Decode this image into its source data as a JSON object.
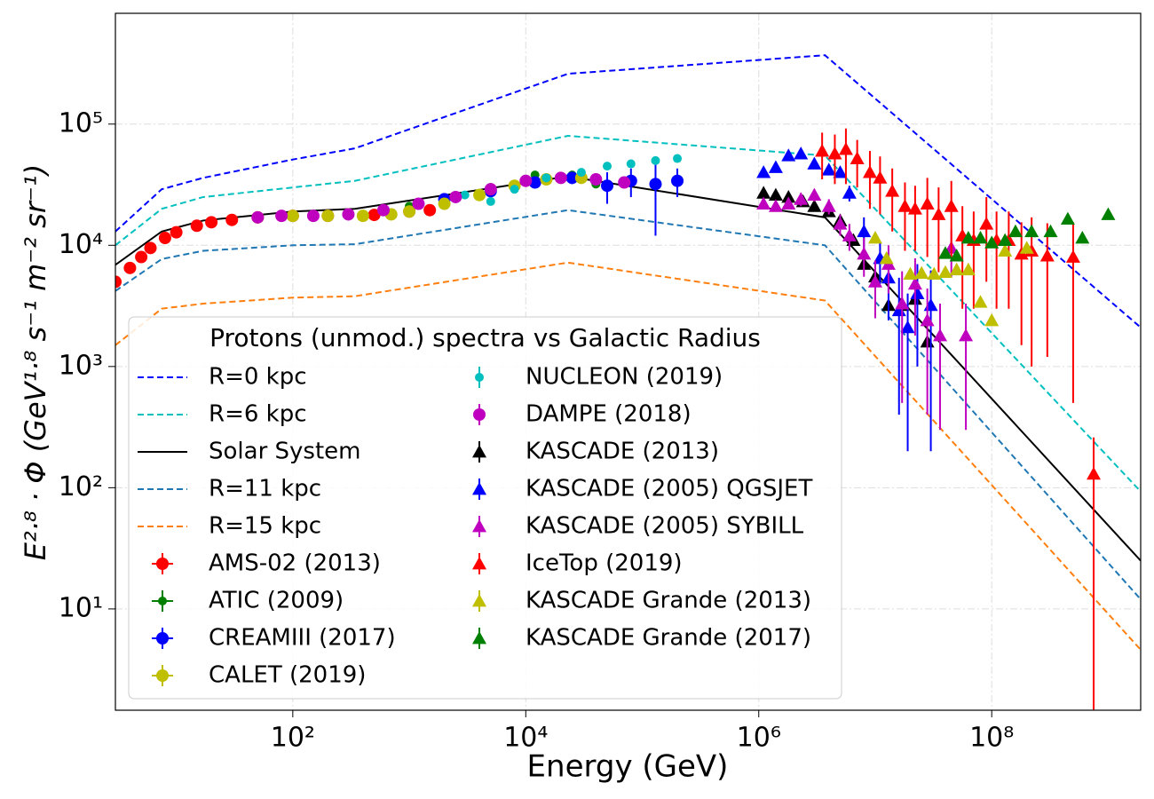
{
  "chart_data": {
    "type": "line",
    "xlabel": "Energy (GeV)",
    "ylabel": "E²·⁸ · Φ (GeV¹·⁸ s⁻¹ m⁻² sr⁻¹)",
    "legend_title": "Protons (unmod.) spectra vs Galactic Radius",
    "log_x": true,
    "log_y": true,
    "grid": true,
    "legend": "lower left",
    "xlim": [
      3,
      1900000000
    ],
    "ylim": [
      1.46,
      820000
    ],
    "xticks": [
      {
        "value": 100,
        "label": "10²"
      },
      {
        "value": 10000,
        "label": "10⁴"
      },
      {
        "value": 1000000,
        "label": "10⁶"
      },
      {
        "value": 100000000,
        "label": "10⁸"
      }
    ],
    "yticks": [
      {
        "value": 10,
        "label": "10¹"
      },
      {
        "value": 100,
        "label": "10²"
      },
      {
        "value": 1000,
        "label": "10³"
      },
      {
        "value": 10000,
        "label": "10⁴"
      },
      {
        "value": 100000,
        "label": "10⁵"
      }
    ],
    "series": [
      {
        "name": "R=0 kpc",
        "color": "#0000ff",
        "style": "dashed",
        "x": [
          3,
          7.5,
          17,
          100,
          340,
          23000,
          3700000,
          1900000000
        ],
        "values": [
          13000,
          29000,
          36000,
          51000,
          63000,
          260000,
          370000,
          2100
        ]
      },
      {
        "name": "R=6 kpc",
        "color": "#00bfbf",
        "style": "dashed",
        "x": [
          3,
          7.5,
          17,
          100,
          340,
          23000,
          3700000,
          1900000000
        ],
        "values": [
          10000,
          20000,
          25000,
          30000,
          34000,
          80000,
          55000,
          93
        ]
      },
      {
        "name": "Solar System",
        "color": "#000000",
        "style": "solid",
        "x": [
          3,
          7.5,
          17,
          100,
          340,
          23000,
          3700000,
          1900000000
        ],
        "values": [
          6900,
          13000,
          16000,
          19000,
          20000,
          37000,
          17000,
          25
        ]
      },
      {
        "name": "R=11 kpc",
        "color": "#1f77b4",
        "style": "dashed",
        "x": [
          3,
          7.5,
          17,
          100,
          340,
          23000,
          3700000,
          1900000000
        ],
        "values": [
          4200,
          7700,
          9000,
          10000,
          10200,
          19500,
          10000,
          12
        ]
      },
      {
        "name": "R=15 kpc",
        "color": "#ff7f0e",
        "style": "dashed",
        "x": [
          3,
          7.5,
          17,
          100,
          340,
          23000,
          3700000,
          1900000000
        ],
        "values": [
          1500,
          3000,
          3300,
          3700,
          3800,
          7200,
          3500,
          4.6
        ]
      },
      {
        "name": "AMS-02 (2013)",
        "color": "#ff0000",
        "style": "circle",
        "x": [
          3,
          4,
          5,
          6,
          8,
          10,
          15,
          20,
          30,
          50,
          100,
          200,
          500,
          1000,
          1500
        ],
        "values": [
          5000,
          6500,
          8000,
          9500,
          11500,
          12800,
          14500,
          15500,
          16200,
          17000,
          17500,
          17500,
          17800,
          19000,
          19500
        ]
      },
      {
        "name": "ATIC (2009)",
        "color": "#008000",
        "style": "small-circle",
        "x": [
          1000,
          5000,
          12000,
          25000,
          40000
        ],
        "values": [
          21000,
          30000,
          38000,
          38000,
          32000
        ]
      },
      {
        "name": "CREAMIII (2017)",
        "color": "#0000ff",
        "style": "circle",
        "x": [
          2000,
          5000,
          12000,
          25000,
          50000,
          80000,
          130000,
          200000
        ],
        "values": [
          24000,
          28000,
          33000,
          36000,
          31000,
          34000,
          32000,
          34000
        ],
        "errors": [
          2000,
          2500,
          3000,
          4000,
          9000,
          9000,
          20000,
          9000
        ]
      },
      {
        "name": "CALET (2019)",
        "color": "#bfbf00",
        "style": "circle",
        "x": [
          50,
          100,
          200,
          400,
          700,
          1000,
          2000,
          4000,
          8000,
          15000,
          30000
        ],
        "values": [
          17000,
          17500,
          17500,
          17500,
          18000,
          19000,
          22000,
          26000,
          31000,
          35000,
          36000
        ]
      },
      {
        "name": "NUCLEON (2019)",
        "color": "#00bfbf",
        "style": "small-circle",
        "x": [
          3000,
          5000,
          8000,
          15000,
          30000,
          50000,
          80000,
          130000,
          200000
        ],
        "values": [
          26000,
          23000,
          29000,
          36000,
          40000,
          45000,
          47000,
          50000,
          52000
        ]
      },
      {
        "name": "DAMPE (2018)",
        "color": "#bf00bf",
        "style": "circle",
        "x": [
          50,
          80,
          150,
          300,
          600,
          1200,
          2500,
          5000,
          10000,
          20000,
          40000,
          70000
        ],
        "values": [
          17000,
          17500,
          17500,
          18000,
          19500,
          22000,
          25000,
          29000,
          34000,
          36000,
          35000,
          33000
        ]
      },
      {
        "name": "KASCADE (2013)",
        "color": "#000000",
        "style": "triangle",
        "x": [
          1100000,
          1400000,
          1800000,
          2400000,
          3000000,
          4000000,
          5000000,
          6500000,
          8000000,
          10000000,
          13000000,
          17000000,
          22000000,
          28000000
        ],
        "values": [
          27000,
          26000,
          25000,
          23000,
          21000,
          19000,
          16000,
          11000,
          7000,
          5500,
          3200,
          3200,
          3600,
          1600
        ]
      },
      {
        "name": "KASCADE (2005) QGSJET",
        "color": "#0000ff",
        "style": "triangle",
        "x": [
          1100000,
          1400000,
          1800000,
          2300000,
          3000000,
          4000000,
          5000000,
          6000000,
          8000000,
          11000000,
          13000000,
          16000000,
          19000000,
          23000000,
          30000000
        ],
        "values": [
          40000,
          44000,
          55000,
          57000,
          47000,
          42000,
          40000,
          27000,
          13000,
          7800,
          5400,
          2900,
          2100,
          4000,
          3200
        ],
        "errors": [
          3000,
          3000,
          4000,
          4000,
          4000,
          4000,
          4000,
          4000,
          4000,
          3000,
          3000,
          2500,
          1900,
          3000,
          3000
        ]
      },
      {
        "name": "KASCADE (2005) SYBILL",
        "color": "#bf00bf",
        "style": "triangle",
        "x": [
          1100000,
          1400000,
          1800000,
          2300000,
          3000000,
          4000000,
          5000000,
          6000000,
          8000000,
          10000000,
          13000000,
          17000000,
          22000000,
          28000000,
          36000000,
          45000000,
          60000000
        ],
        "values": [
          22000,
          21000,
          22000,
          24000,
          26000,
          21000,
          15000,
          12000,
          8500,
          5000,
          7000,
          3300,
          4800,
          2400,
          1800,
          9500,
          1800
        ],
        "errors": [
          2000,
          2000,
          2000,
          3000,
          3000,
          3000,
          3000,
          3000,
          3000,
          2500,
          3000,
          2800,
          3000,
          2000,
          1500,
          4000,
          1500
        ]
      },
      {
        "name": "IceTop (2019)",
        "color": "#ff0000",
        "style": "triangle",
        "x": [
          3500000,
          4500000,
          5600000,
          7000000,
          9000000,
          11000000,
          14000000,
          18000000,
          22000000,
          28000000,
          35000000,
          45000000,
          56000000,
          70000000,
          90000000,
          110000000,
          140000000,
          180000000,
          220000000,
          300000000,
          500000000,
          750000000
        ],
        "values": [
          60000,
          57000,
          62000,
          52000,
          40000,
          36000,
          28000,
          21000,
          20000,
          22000,
          18000,
          21000,
          12000,
          11000,
          15000,
          11000,
          11000,
          8500,
          9000,
          8200,
          8000,
          130
        ],
        "errors": [
          25000,
          25000,
          30000,
          22000,
          20000,
          18000,
          15000,
          12000,
          11000,
          14000,
          12000,
          13000,
          9000,
          8000,
          10000,
          8000,
          8000,
          7000,
          8000,
          7000,
          7500,
          130
        ]
      },
      {
        "name": "KASCADE Grande (2013)",
        "color": "#bfbf00",
        "style": "triangle",
        "x": [
          10000000,
          12500000,
          20000000,
          25000000,
          32000000,
          40000000,
          50000000,
          63000000,
          80000000,
          100000000,
          130000000,
          200000000
        ],
        "values": [
          11500,
          7800,
          5800,
          5900,
          5800,
          6000,
          6300,
          6300,
          3400,
          2400,
          9000,
          9500
        ]
      },
      {
        "name": "KASCADE Grande (2017)",
        "color": "#008000",
        "style": "triangle",
        "x": [
          40000000,
          50000000,
          63000000,
          80000000,
          100000000,
          130000000,
          160000000,
          220000000,
          320000000,
          450000000,
          600000000,
          1000000000
        ],
        "values": [
          8600,
          8200,
          11500,
          11500,
          10500,
          11000,
          13000,
          13000,
          13000,
          16500,
          11500,
          18000
        ]
      }
    ]
  }
}
